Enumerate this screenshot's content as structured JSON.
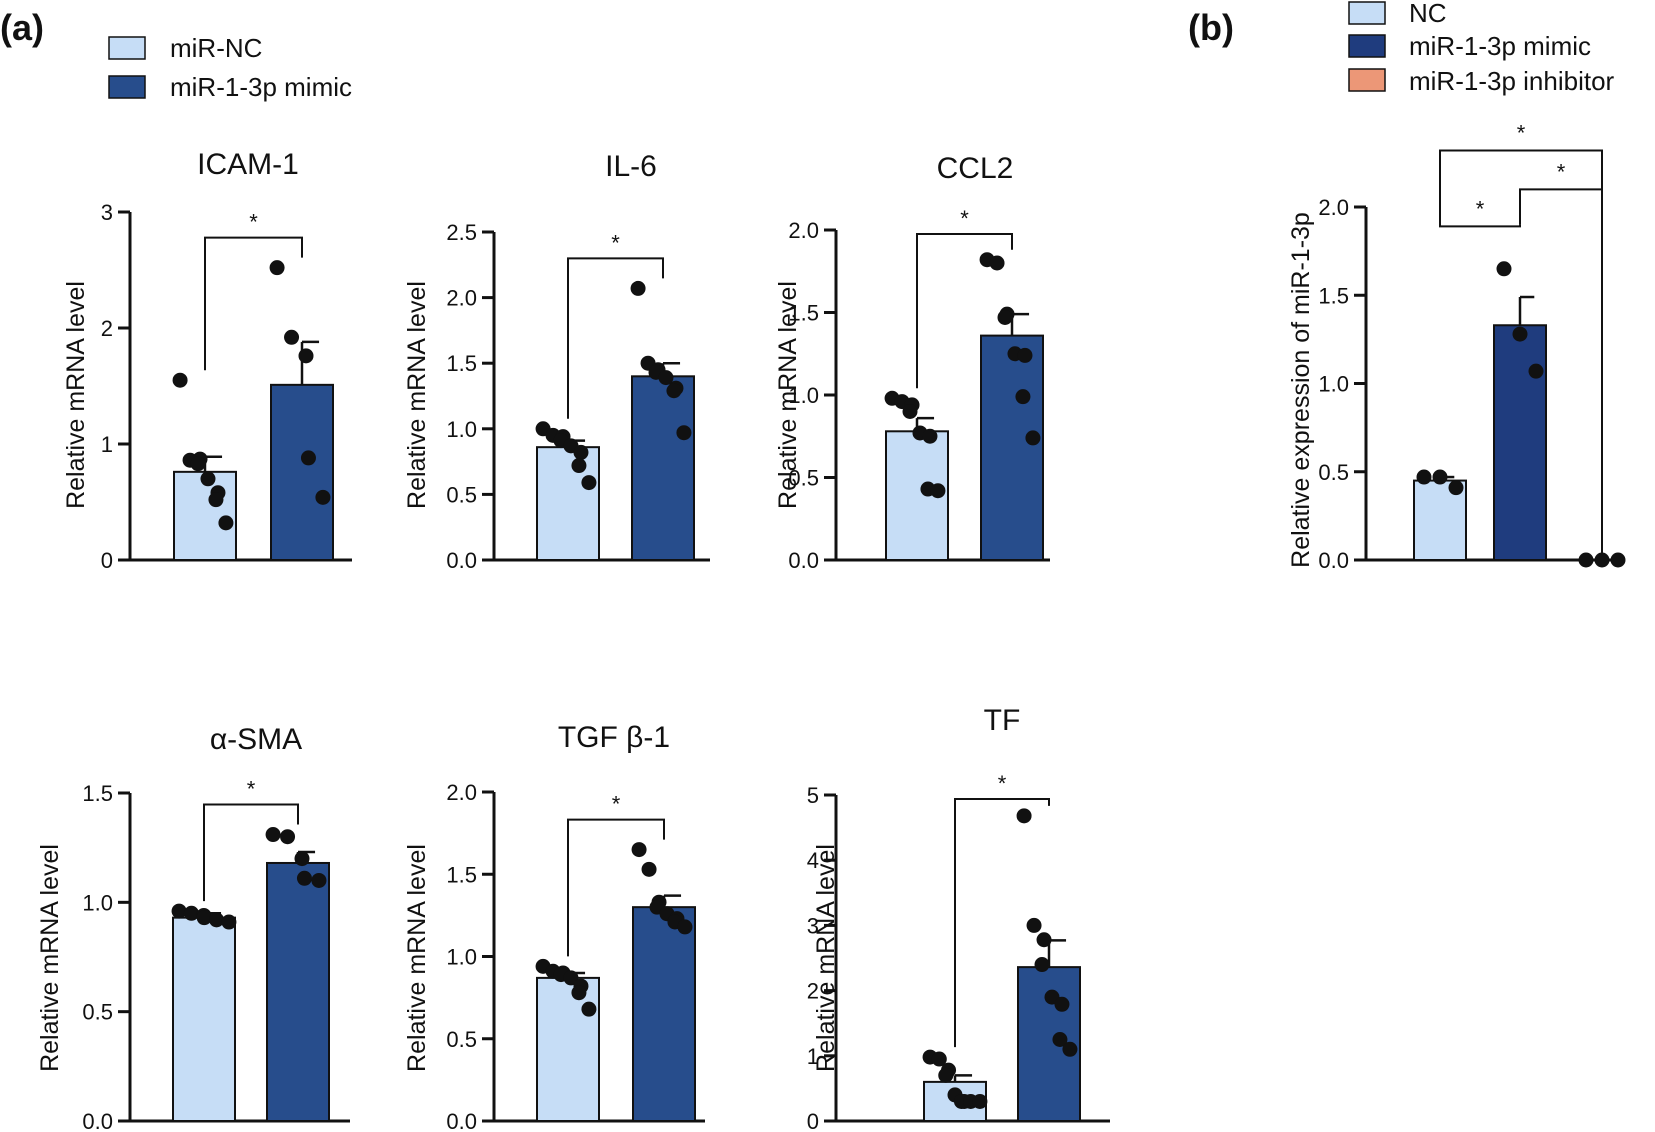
{
  "panel_labels": {
    "a": "(a)",
    "b": "(b)"
  },
  "colors": {
    "nc": "#C6DDF6",
    "mimic": "#274D8C",
    "mimic_b": "#1F3C7E",
    "inhibitor": "#EC9777",
    "ink": "#111111"
  },
  "legend_a": [
    {
      "label": "miR-NC",
      "color_key": "nc"
    },
    {
      "label": "miR-1-3p mimic",
      "color_key": "mimic"
    }
  ],
  "legend_b": [
    {
      "label": "NC",
      "color_key": "nc"
    },
    {
      "label": "miR-1-3p mimic",
      "color_key": "mimic_b"
    },
    {
      "label": "miR-1-3p inhibitor",
      "color_key": "inhibitor"
    }
  ],
  "chart_data": [
    {
      "id": "icam1",
      "type": "bar",
      "title": "ICAM-1",
      "ylabel": "Relative mRNA level",
      "ylim": [
        0,
        3
      ],
      "yticks": [
        0,
        1,
        2,
        3
      ],
      "tick_labels": [
        "0",
        "1",
        "2",
        "3"
      ],
      "categories": [
        "miR-NC",
        "miR-1-3p mimic"
      ],
      "series": [
        {
          "name": "miR-NC",
          "color_key": "nc",
          "mean": 0.76,
          "sem": 0.13,
          "points": [
            1.55,
            0.86,
            0.87,
            0.83,
            0.7,
            0.58,
            0.52,
            0.32
          ]
        },
        {
          "name": "miR-1-3p mimic",
          "color_key": "mimic",
          "mean": 1.51,
          "sem": 0.37,
          "points": [
            2.52,
            1.92,
            1.76,
            0.88,
            0.54
          ]
        }
      ],
      "annotations": [
        {
          "from": 0,
          "to": 1,
          "label": "*"
        }
      ]
    },
    {
      "id": "il6",
      "type": "bar",
      "title": "IL-6",
      "ylabel": "Relative mRNA level",
      "ylim": [
        0,
        2.5
      ],
      "yticks": [
        0,
        0.5,
        1,
        1.5,
        2,
        2.5
      ],
      "tick_labels": [
        "0.0",
        "0.5",
        "1.0",
        "1.5",
        "2.0",
        "2.5"
      ],
      "categories": [
        "miR-NC",
        "miR-1-3p mimic"
      ],
      "series": [
        {
          "name": "miR-NC",
          "color_key": "nc",
          "mean": 0.86,
          "sem": 0.05,
          "points": [
            1.0,
            0.95,
            0.94,
            0.91,
            0.87,
            0.82,
            0.72,
            0.59
          ]
        },
        {
          "name": "miR-1-3p mimic",
          "color_key": "mimic",
          "mean": 1.4,
          "sem": 0.1,
          "points": [
            2.07,
            1.5,
            1.45,
            1.43,
            1.39,
            1.31,
            1.29,
            0.97
          ]
        }
      ],
      "annotations": [
        {
          "from": 0,
          "to": 1,
          "label": "*"
        }
      ]
    },
    {
      "id": "ccl2",
      "type": "bar",
      "title": "CCL2",
      "ylabel": "Relative mRNA level",
      "ylim": [
        0,
        2
      ],
      "yticks": [
        0,
        0.5,
        1,
        1.5,
        2
      ],
      "tick_labels": [
        "0.0",
        "0.5",
        "1.0",
        "1.5",
        "2.0"
      ],
      "categories": [
        "miR-NC",
        "miR-1-3p mimic"
      ],
      "series": [
        {
          "name": "miR-NC",
          "color_key": "nc",
          "mean": 0.78,
          "sem": 0.08,
          "points": [
            0.98,
            0.96,
            0.94,
            0.9,
            0.77,
            0.75,
            0.43,
            0.42
          ]
        },
        {
          "name": "miR-1-3p mimic",
          "color_key": "mimic",
          "mean": 1.36,
          "sem": 0.13,
          "points": [
            1.82,
            1.8,
            1.49,
            1.47,
            1.25,
            1.24,
            0.99,
            0.74
          ]
        }
      ],
      "annotations": [
        {
          "from": 0,
          "to": 1,
          "label": "*"
        }
      ]
    },
    {
      "id": "asma",
      "type": "bar",
      "title": "α-SMA",
      "ylabel": "Relative mRNA level",
      "ylim": [
        0,
        1.5
      ],
      "yticks": [
        0,
        0.5,
        1,
        1.5
      ],
      "tick_labels": [
        "0.0",
        "0.5",
        "1.0",
        "1.5"
      ],
      "categories": [
        "miR-NC",
        "miR-1-3p mimic"
      ],
      "series": [
        {
          "name": "miR-NC",
          "color_key": "nc",
          "mean": 0.93,
          "sem": 0.02,
          "points": [
            0.96,
            0.95,
            0.94,
            0.93,
            0.92,
            0.91
          ]
        },
        {
          "name": "miR-1-3p mimic",
          "color_key": "mimic",
          "mean": 1.18,
          "sem": 0.05,
          "points": [
            1.31,
            1.3,
            1.2,
            1.11,
            1.1
          ]
        }
      ],
      "annotations": [
        {
          "from": 0,
          "to": 1,
          "label": "*"
        }
      ]
    },
    {
      "id": "tgfb1",
      "type": "bar",
      "title": "TGF β-1",
      "ylabel": "Relative mRNA level",
      "ylim": [
        0,
        2
      ],
      "yticks": [
        0,
        0.5,
        1,
        1.5,
        2
      ],
      "tick_labels": [
        "0.0",
        "0.5",
        "1.0",
        "1.5",
        "2.0"
      ],
      "categories": [
        "miR-NC",
        "miR-1-3p mimic"
      ],
      "series": [
        {
          "name": "miR-NC",
          "color_key": "nc",
          "mean": 0.87,
          "sem": 0.03,
          "points": [
            0.94,
            0.91,
            0.9,
            0.89,
            0.87,
            0.82,
            0.78,
            0.68
          ]
        },
        {
          "name": "miR-1-3p mimic",
          "color_key": "mimic",
          "mean": 1.3,
          "sem": 0.07,
          "points": [
            1.65,
            1.53,
            1.33,
            1.3,
            1.26,
            1.23,
            1.21,
            1.18
          ]
        }
      ],
      "annotations": [
        {
          "from": 0,
          "to": 1,
          "label": "*"
        }
      ]
    },
    {
      "id": "tf",
      "type": "bar",
      "title": "TF",
      "ylabel": "Relative mRNA level",
      "ylim": [
        0,
        5
      ],
      "yticks": [
        0,
        1,
        2,
        3,
        4,
        5
      ],
      "tick_labels": [
        "0",
        "1",
        "2",
        "3",
        "4",
        "5"
      ],
      "categories": [
        "miR-NC",
        "miR-1-3p mimic"
      ],
      "series": [
        {
          "name": "miR-NC",
          "color_key": "nc",
          "mean": 0.6,
          "sem": 0.1,
          "points": [
            0.98,
            0.95,
            0.78,
            0.7,
            0.4,
            0.3,
            0.3,
            0.3,
            0.3
          ]
        },
        {
          "name": "miR-1-3p mimic",
          "color_key": "mimic",
          "mean": 2.36,
          "sem": 0.41,
          "points": [
            4.68,
            3.0,
            2.78,
            2.4,
            1.9,
            1.79,
            1.25,
            1.1
          ]
        }
      ],
      "annotations": [
        {
          "from": 0,
          "to": 1,
          "label": "*"
        }
      ]
    },
    {
      "id": "mir13p",
      "type": "bar",
      "title": "",
      "ylabel": "Relative expression of miR-1-3p",
      "ylim": [
        0,
        2
      ],
      "yticks": [
        0,
        0.5,
        1,
        1.5,
        2
      ],
      "tick_labels": [
        "0.0",
        "0.5",
        "1.0",
        "1.5",
        "2.0"
      ],
      "categories": [
        "NC",
        "miR-1-3p mimic",
        "miR-1-3p inhibitor"
      ],
      "series": [
        {
          "name": "NC",
          "color_key": "nc",
          "mean": 0.45,
          "sem": 0.02,
          "points": [
            0.47,
            0.47,
            0.41
          ]
        },
        {
          "name": "miR-1-3p mimic",
          "color_key": "mimic_b",
          "mean": 1.33,
          "sem": 0.16,
          "points": [
            1.65,
            1.28,
            1.07
          ]
        },
        {
          "name": "miR-1-3p inhibitor",
          "color_key": "inhibitor",
          "mean": 0.0,
          "sem": 0.0,
          "points": [
            0.0,
            0.0,
            0.0
          ]
        }
      ],
      "annotations": [
        {
          "from": 0,
          "to": 1,
          "label": "*"
        },
        {
          "from": 1,
          "to": 2,
          "label": "*"
        },
        {
          "from": 0,
          "to": 2,
          "label": "*"
        }
      ]
    }
  ]
}
